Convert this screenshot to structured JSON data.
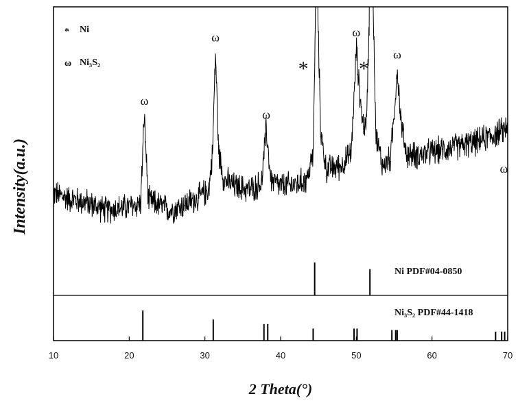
{
  "chart_data": {
    "type": "line",
    "xlabel": "2 Theta(°)",
    "ylabel": "Intensity(a.u.)",
    "xlim": [
      10,
      70
    ],
    "x_ticks": [
      10,
      20,
      30,
      40,
      50,
      60,
      70
    ],
    "grid": false,
    "legend": {
      "placement": "top-left",
      "entries": [
        {
          "symbol": "*",
          "label": "Ni"
        },
        {
          "symbol": "ω",
          "label": "Ni₃S₂"
        }
      ]
    },
    "series": [
      {
        "noise_amplitude": 0.06,
        "x": [
          10,
          12,
          14,
          16,
          17,
          18,
          20,
          21.5,
          22.0,
          22.5,
          24,
          25.5,
          27,
          29,
          30.5,
          31.0,
          31.4,
          31.8,
          32.5,
          34,
          36,
          37.5,
          38.1,
          38.7,
          40,
          42,
          43.5,
          44.3,
          44.6,
          44.75,
          44.9,
          45.3,
          46,
          48,
          49.3,
          49.8,
          50.0,
          50.3,
          50.8,
          51.3,
          51.7,
          51.9,
          52.05,
          52.2,
          52.6,
          53.5,
          54.5,
          55.0,
          55.4,
          55.9,
          56.6,
          58,
          60,
          62,
          64,
          66,
          68,
          69.3,
          70
        ],
        "y": [
          0.32,
          0.29,
          0.27,
          0.24,
          0.22,
          0.23,
          0.24,
          0.26,
          0.78,
          0.28,
          0.25,
          0.22,
          0.25,
          0.29,
          0.34,
          0.55,
          1.15,
          0.57,
          0.4,
          0.36,
          0.34,
          0.38,
          0.7,
          0.4,
          0.36,
          0.37,
          0.4,
          0.55,
          1.3,
          4.0,
          1.4,
          0.68,
          0.46,
          0.48,
          0.55,
          0.95,
          1.18,
          0.98,
          0.74,
          0.7,
          1.3,
          3.8,
          4.0,
          1.5,
          0.65,
          0.48,
          0.52,
          0.78,
          1.05,
          0.74,
          0.55,
          0.54,
          0.56,
          0.58,
          0.6,
          0.62,
          0.66,
          0.68,
          0.72
        ]
      }
    ],
    "peak_markers": [
      {
        "symbol": "ω",
        "x": 22.0
      },
      {
        "symbol": "ω",
        "x": 31.4
      },
      {
        "symbol": "ω",
        "x": 38.1
      },
      {
        "symbol": "*",
        "x": 43.0
      },
      {
        "symbol": "ω",
        "x": 50.0
      },
      {
        "symbol": "*",
        "x": 51.0
      },
      {
        "symbol": "ω",
        "x": 55.4
      },
      {
        "symbol": "ω",
        "x": 69.5
      }
    ],
    "reference_patterns": [
      {
        "label": "Ni PDF#04-0850",
        "lines": [
          {
            "x": 44.5,
            "h": 1.0
          },
          {
            "x": 51.8,
            "h": 0.8
          }
        ]
      },
      {
        "label": "Ni₃S₂ PDF#44-1418",
        "lines": [
          {
            "x": 21.8,
            "h": 1.0
          },
          {
            "x": 31.1,
            "h": 0.7
          },
          {
            "x": 37.8,
            "h": 0.55
          },
          {
            "x": 38.3,
            "h": 0.55
          },
          {
            "x": 44.3,
            "h": 0.4
          },
          {
            "x": 49.7,
            "h": 0.4
          },
          {
            "x": 50.1,
            "h": 0.4
          },
          {
            "x": 54.7,
            "h": 0.35
          },
          {
            "x": 55.2,
            "h": 0.35
          },
          {
            "x": 55.4,
            "h": 0.35
          },
          {
            "x": 68.4,
            "h": 0.3
          },
          {
            "x": 69.2,
            "h": 0.3
          },
          {
            "x": 69.6,
            "h": 0.3
          }
        ]
      }
    ]
  }
}
